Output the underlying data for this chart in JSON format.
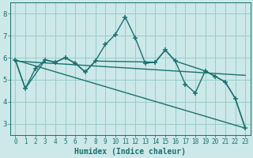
{
  "title": "",
  "xlabel": "Humidex (Indice chaleur)",
  "background_color": "#cce8e8",
  "grid_color": "#99cccc",
  "line_color": "#1a7070",
  "xlim": [
    -0.5,
    23.5
  ],
  "ylim": [
    2.5,
    8.5
  ],
  "xticks": [
    0,
    1,
    2,
    3,
    4,
    5,
    6,
    7,
    8,
    9,
    10,
    11,
    12,
    13,
    14,
    15,
    16,
    17,
    18,
    19,
    20,
    21,
    22,
    23
  ],
  "yticks": [
    3,
    4,
    5,
    6,
    7,
    8
  ],
  "series": [
    {
      "x": [
        0,
        1,
        2,
        3,
        4,
        5,
        6,
        7,
        8,
        9,
        10,
        11,
        12,
        13,
        14,
        15,
        16,
        17,
        18,
        19,
        20,
        21,
        22,
        23
      ],
      "y": [
        5.9,
        4.6,
        5.5,
        5.9,
        5.8,
        6.0,
        5.75,
        5.35,
        5.85,
        6.6,
        7.05,
        7.85,
        6.9,
        5.75,
        5.8,
        6.35,
        5.85,
        4.8,
        4.4,
        5.4,
        5.15,
        4.9,
        4.15,
        2.8
      ],
      "marker": "+",
      "linewidth": 1.0,
      "markersize": 5
    },
    {
      "x": [
        0,
        1,
        3,
        4,
        5,
        6,
        7,
        8,
        14,
        15,
        16,
        19,
        20,
        21,
        22,
        23
      ],
      "y": [
        5.9,
        4.6,
        5.9,
        5.8,
        6.0,
        5.75,
        5.35,
        5.85,
        5.8,
        6.35,
        5.85,
        5.4,
        5.15,
        4.9,
        4.15,
        2.8
      ],
      "marker": null,
      "linewidth": 1.0,
      "markersize": 0
    },
    {
      "x": [
        0,
        23
      ],
      "y": [
        5.9,
        2.8
      ],
      "marker": null,
      "linewidth": 1.0,
      "markersize": 0
    },
    {
      "x": [
        0,
        23
      ],
      "y": [
        5.85,
        5.2
      ],
      "marker": null,
      "linewidth": 1.0,
      "markersize": 0
    }
  ]
}
